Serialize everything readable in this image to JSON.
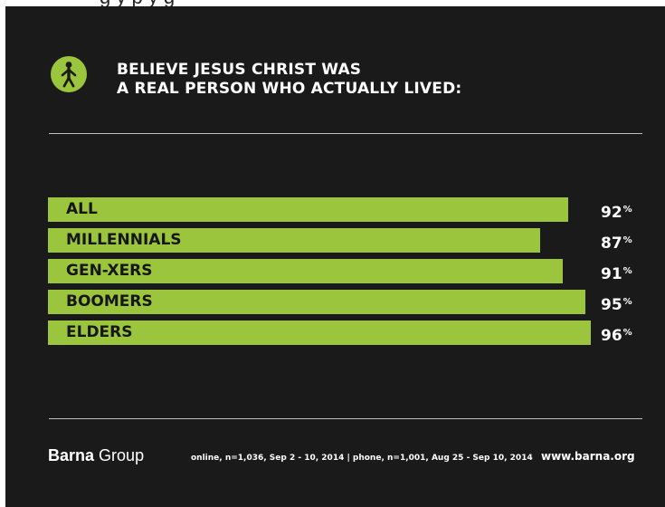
{
  "header_strip_text": "g                                   y   p   y   g",
  "title_line1": "BELIEVE JESUS CHRIST WAS",
  "title_line2": "A REAL PERSON WHO ACTUALLY LIVED:",
  "icon": "person-icon",
  "colors": {
    "background": "#1a1a1a",
    "bar": "#9bc53d",
    "text": "#ffffff",
    "bar_text": "#161616"
  },
  "chart_data": {
    "type": "bar",
    "orientation": "horizontal",
    "title": "BELIEVE JESUS CHRIST WAS A REAL PERSON WHO ACTUALLY LIVED:",
    "categories": [
      "ALL",
      "MILLENNIALS",
      "GEN-XERS",
      "BOOMERS",
      "ELDERS"
    ],
    "values": [
      92,
      87,
      91,
      95,
      96
    ],
    "unit": "%",
    "xlim": [
      0,
      100
    ],
    "grid": false,
    "legend": "none"
  },
  "footer": {
    "brand_bold": "Barna",
    "brand_light": "Group",
    "source": "online, n=1,036, Sep 2 - 10, 2014  |  phone, n=1,001, Aug 25 - Sep 10, 2014",
    "website": "www.barna.org"
  }
}
